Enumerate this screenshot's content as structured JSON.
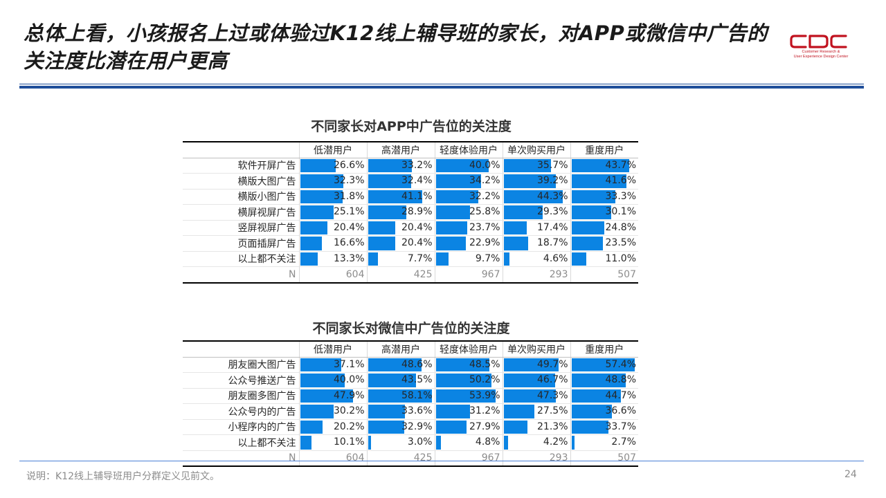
{
  "title": "总体上看，小孩报名上过或体验过K12线上辅导班的家长，对APP或微信中广告的关注度比潜在用户更高",
  "logo": {
    "mark": "CDC",
    "line1": "Customer Research &",
    "line2": "User Experience Design Center",
    "color": "#c1121f"
  },
  "bar_color": "#0b84e3",
  "footer": {
    "note": "说明：K12线上辅导班用户分群定义见前文。",
    "page": "24"
  },
  "chart_data": [
    {
      "type": "table",
      "title": "不同家长对APP中广告位的关注度",
      "columns": [
        "低潜用户",
        "高潜用户",
        "轻度体验用户",
        "单次购买用户",
        "重度用户"
      ],
      "rows": [
        {
          "label": "软件开屏广告",
          "values": [
            26.6,
            33.2,
            40.0,
            35.7,
            43.7
          ]
        },
        {
          "label": "横版大图广告",
          "values": [
            32.3,
            32.4,
            34.2,
            39.2,
            41.6
          ]
        },
        {
          "label": "横版小图广告",
          "values": [
            31.8,
            41.1,
            32.2,
            44.3,
            33.3
          ]
        },
        {
          "label": "横屏视屏广告",
          "values": [
            25.1,
            28.9,
            25.8,
            29.3,
            30.1
          ]
        },
        {
          "label": "竖屏视屏广告",
          "values": [
            20.4,
            20.4,
            23.7,
            17.4,
            24.8
          ]
        },
        {
          "label": "页面插屏广告",
          "values": [
            16.6,
            20.4,
            22.9,
            18.7,
            23.5
          ]
        },
        {
          "label": "以上都不关注",
          "values": [
            13.3,
            7.7,
            9.7,
            4.6,
            11.0
          ]
        }
      ],
      "n_label": "N",
      "n": [
        604,
        425,
        967,
        293,
        507
      ],
      "bar_max": 50
    },
    {
      "type": "table",
      "title": "不同家长对微信中广告位的关注度",
      "columns": [
        "低潜用户",
        "高潜用户",
        "轻度体验用户",
        "单次购买用户",
        "重度用户"
      ],
      "rows": [
        {
          "label": "朋友圈大图广告",
          "values": [
            37.1,
            48.6,
            48.5,
            49.7,
            57.4
          ]
        },
        {
          "label": "公众号推送广告",
          "values": [
            40.0,
            43.5,
            50.2,
            46.7,
            48.8
          ]
        },
        {
          "label": "朋友圈多图广告",
          "values": [
            47.9,
            58.1,
            53.9,
            47.3,
            44.7
          ]
        },
        {
          "label": "公众号内的广告",
          "values": [
            30.2,
            33.6,
            31.2,
            27.5,
            36.6
          ]
        },
        {
          "label": "小程序内的广告",
          "values": [
            20.2,
            32.9,
            27.9,
            21.3,
            33.7
          ]
        },
        {
          "label": "以上都不关注",
          "values": [
            10.1,
            3.0,
            4.8,
            4.2,
            2.7
          ]
        }
      ],
      "n_label": "N",
      "n": [
        604,
        425,
        967,
        293,
        507
      ],
      "bar_max": 60
    }
  ]
}
